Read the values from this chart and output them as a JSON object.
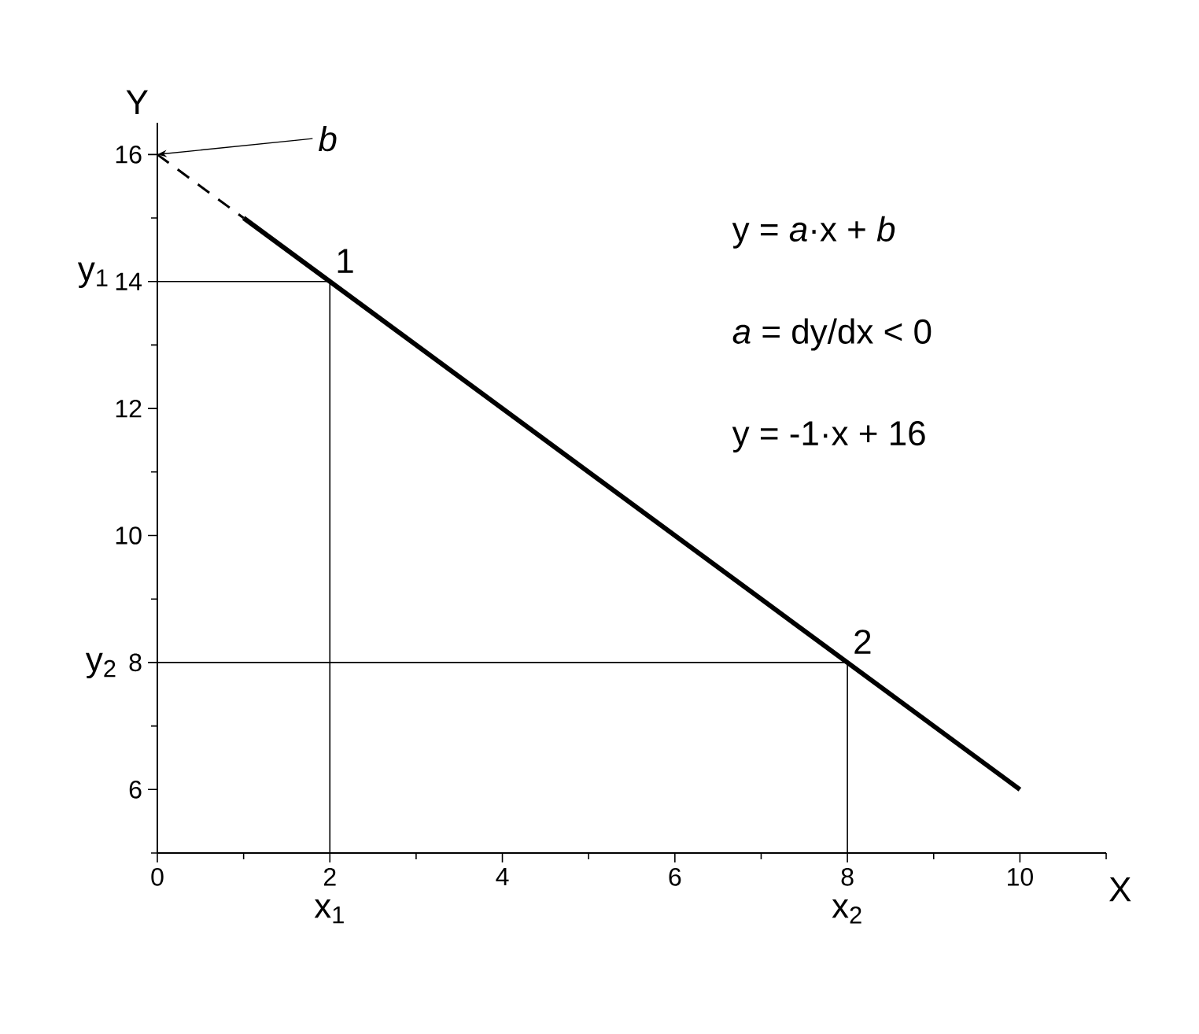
{
  "chart_data": {
    "type": "line",
    "xlabel": "X",
    "ylabel": "Y",
    "xlim": [
      0,
      11
    ],
    "ylim": [
      5,
      16.5
    ],
    "xticks": [
      0,
      {
        "value": 1,
        "label": null
      },
      2,
      {
        "value": 3,
        "label": null
      },
      4,
      {
        "value": 5,
        "label": null
      },
      6,
      {
        "value": 7,
        "label": null
      },
      8,
      {
        "value": 9,
        "label": null
      },
      10,
      {
        "value": 11,
        "label": null
      }
    ],
    "yticks": [
      {
        "value": 5,
        "label": null
      },
      6,
      {
        "value": 7,
        "label": null
      },
      8,
      {
        "value": 9,
        "label": null
      },
      10,
      {
        "value": 11,
        "label": null
      },
      12,
      {
        "value": 13,
        "label": null
      },
      14,
      {
        "value": 15,
        "label": null
      },
      16
    ],
    "grid": false,
    "marker": "none",
    "series": [
      {
        "color": "#000000",
        "x": [
          1,
          10
        ],
        "values": [
          15,
          6
        ],
        "line_style": "solid"
      },
      {
        "color": "#000000",
        "x": [
          0,
          1
        ],
        "values": [
          16,
          15
        ],
        "line_style": "dashed"
      },
      {
        "color": "#000000",
        "x": [
          0,
          2,
          2
        ],
        "values": [
          14,
          14,
          5
        ],
        "line_style": "solid"
      },
      {
        "color": "#000000",
        "x": [
          0,
          8,
          8
        ],
        "values": [
          8,
          8,
          5
        ],
        "line_style": "solid"
      }
    ],
    "annotations": [
      {
        "text": "*b*",
        "x": 0,
        "y": 16
      },
      {
        "text": "1",
        "x": 2,
        "y": 14
      },
      {
        "text": "2",
        "x": 8,
        "y": 8
      },
      "y = *a*·x + *b*",
      "*a* = dy/dx < 0",
      "y = -1·x + 16",
      {
        "text": "x$_{1}$",
        "x": 2,
        "y": 5
      },
      {
        "text": "x$_{2}$",
        "x": 8,
        "y": 5
      },
      {
        "text": "y$_{1}$",
        "x": 0,
        "y": 14
      },
      {
        "text": "y$_{2}$",
        "x": 0,
        "y": 8
      }
    ]
  }
}
